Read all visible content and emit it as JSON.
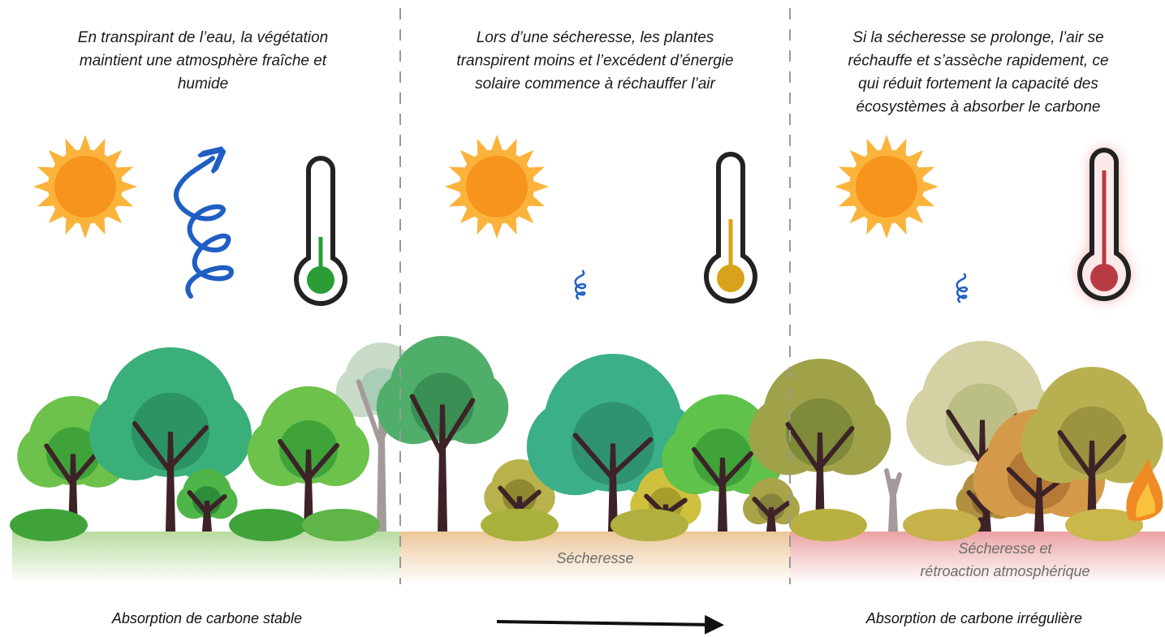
{
  "panels": [
    {
      "caption": [
        "En transpirant de l’eau, la végétation",
        "maintient une atmosphère fraîche et",
        "humide"
      ]
    },
    {
      "caption": [
        "Lors d’une sécheresse, les plantes",
        "transpirent moins et l’excédent d’énergie",
        "solaire commence à réchauffer l’air"
      ],
      "ground_label": [
        "Sécheresse"
      ]
    },
    {
      "caption": [
        "Si la sécheresse se prolonge, l’air se",
        "réchauffe et s’assèche rapidement, ce",
        "qui réduit fortement la capacité des",
        "écosystèmes à absorber le carbone"
      ],
      "ground_label": [
        "Sécheresse et",
        "rétroaction atmosphérique"
      ]
    }
  ],
  "footer": {
    "left": "Absorption de carbone stable",
    "right": "Absorption de carbone irrégulière"
  }
}
